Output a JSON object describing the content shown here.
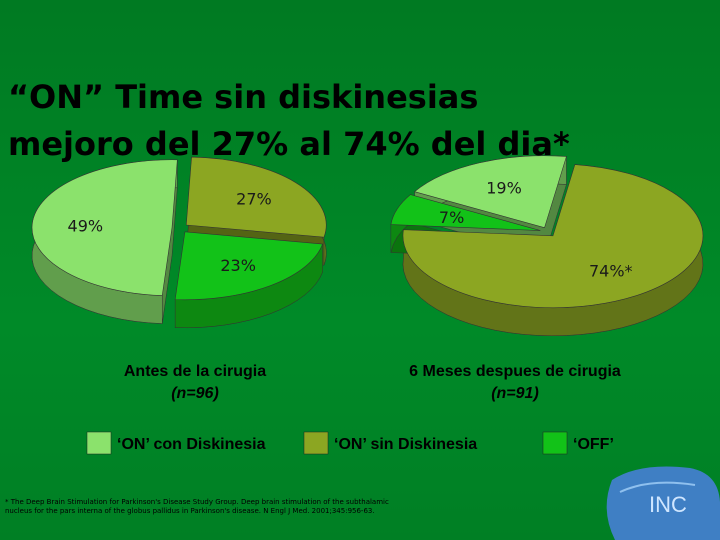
{
  "title": [
    "“ON” Time sin diskinesias",
    "mejoro del 27% al 74% del dia*"
  ],
  "chart_data": [
    {
      "type": "pie",
      "title": "Antes de la cirugia",
      "subtitle": "(n=96)",
      "categories": [
        "‘ON’ con Diskinesia",
        "‘ON’ sin Diskinesia",
        "‘OFF’"
      ],
      "values": [
        49,
        27,
        23
      ],
      "value_labels": [
        "49%",
        "27%",
        "23%"
      ],
      "colors": [
        "#8be26c",
        "#8ca622",
        "#12c218"
      ]
    },
    {
      "type": "pie",
      "title": "6 Meses despues de cirugia",
      "subtitle": "(n=91)",
      "categories": [
        "‘ON’ con Diskinesia",
        "‘ON’ sin Diskinesia",
        "‘OFF’"
      ],
      "values": [
        19,
        74,
        7
      ],
      "value_labels": [
        "19%",
        "74%*",
        "7%"
      ],
      "colors": [
        "#8be26c",
        "#8ca622",
        "#12c218"
      ]
    }
  ],
  "footnote": "* The Deep Brain Stimulation for Parkinson's Disease Study Group. Deep brain stimulation of the subthalamic nucleus for the pars interna of the globus pallidus in Parkinson's disease. N Engl J Med. 2001;345:956-63.",
  "logo": "INC"
}
